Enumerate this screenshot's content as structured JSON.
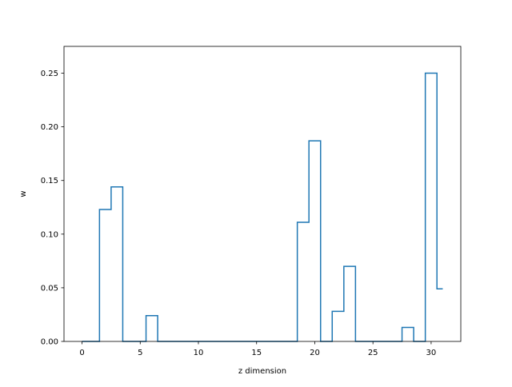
{
  "chart_data": {
    "type": "line",
    "style": "step-mid",
    "title": "",
    "xlabel": "z dimension",
    "ylabel": "w",
    "xlim": [
      -1.55,
      32.55
    ],
    "ylim": [
      0,
      0.275
    ],
    "x_ticks": [
      0,
      5,
      10,
      15,
      20,
      25,
      30
    ],
    "x_tick_labels": [
      "0",
      "5",
      "10",
      "15",
      "20",
      "25",
      "30"
    ],
    "y_ticks": [
      0,
      0.05,
      0.1,
      0.15,
      0.2,
      0.25
    ],
    "y_tick_labels": [
      "0.00",
      "0.05",
      "0.10",
      "0.15",
      "0.20",
      "0.25"
    ],
    "grid": false,
    "legend": "none",
    "series": [
      {
        "color": "#1f77b4",
        "x": [
          0,
          1,
          2,
          3,
          4,
          5,
          6,
          7,
          8,
          9,
          10,
          11,
          12,
          13,
          14,
          15,
          16,
          17,
          18,
          19,
          20,
          21,
          22,
          23,
          24,
          25,
          26,
          27,
          28,
          29,
          30,
          31
        ],
        "values": [
          0,
          0,
          0.123,
          0.144,
          0,
          0,
          0.024,
          0,
          0,
          0,
          0,
          0,
          0,
          0,
          0,
          0,
          0,
          0,
          0,
          0.111,
          0.187,
          0,
          0.028,
          0.07,
          0,
          0,
          0,
          0,
          0.013,
          0,
          0.25,
          0.049
        ]
      }
    ]
  }
}
